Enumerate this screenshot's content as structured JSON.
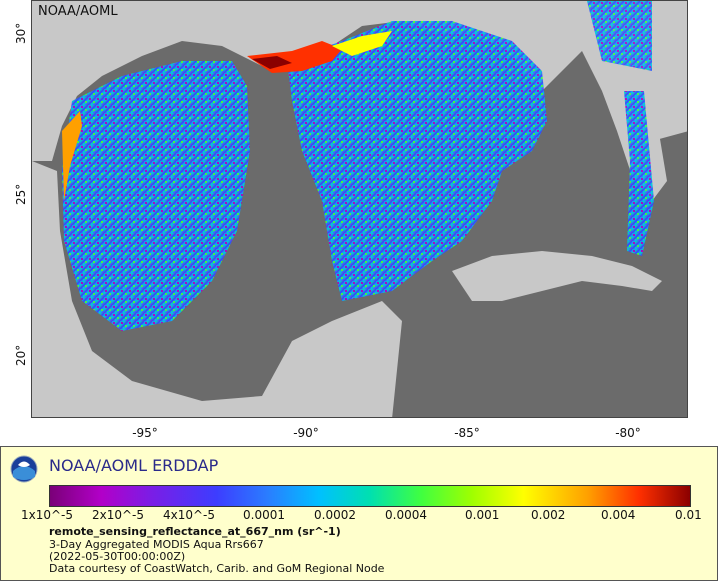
{
  "map": {
    "credit": "NOAA/AOML",
    "y_ticks": [
      "30°",
      "25°",
      "20°"
    ],
    "x_ticks": [
      "-95°",
      "-90°",
      "-85°",
      "-80°"
    ],
    "colors": {
      "ocean_nodata": "#6b6b6b",
      "land": "#c8c8c8",
      "border": "#777777",
      "river": "#6aa0d8"
    }
  },
  "footer": {
    "brand": "NOAA/AOML ERDDAP",
    "logo_icon": "noaa-logo-icon",
    "colorbar_labels": [
      "1x10^-5",
      "2x10^-5",
      "4x10^-5",
      "0.0001",
      "0.0002",
      "0.0004",
      "0.001",
      "0.002",
      "0.004",
      "0.01"
    ],
    "variable": "remote_sensing_reflectance_at_667_nm (sr^-1)",
    "dataset": "3-Day Aggregated MODIS Aqua Rrs667",
    "time": "(2022-05-30T00:00:00Z)",
    "courtesy": "Data courtesy of CoastWatch, Carib. and GoM Regional Node"
  }
}
